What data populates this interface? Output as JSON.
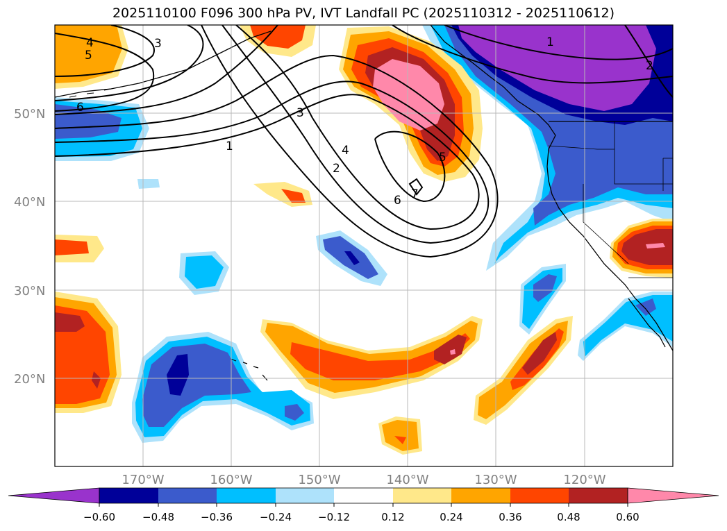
{
  "title": "2025110100 F096 300 hPa PV, IVT Landfall PC (2025110312 - 2025110612)",
  "lat_labels": [
    "50°N",
    "40°N",
    "30°N",
    "20°N"
  ],
  "lon_labels": [
    "170°W",
    "160°W",
    "150°W",
    "140°W",
    "130°W",
    "120°W"
  ],
  "colorbar": {
    "tick_labels": [
      "−0.60",
      "−0.48",
      "−0.36",
      "−0.24",
      "−0.12",
      "0.12",
      "0.24",
      "0.36",
      "0.48",
      "0.60"
    ],
    "colors": [
      "#9933cc",
      "#000099",
      "#3b5bcc",
      "#00bfff",
      "#aee2fb",
      "#ffffff",
      "#ffe88a",
      "#ffa500",
      "#ff4500",
      "#b22222",
      "#ff88aa"
    ]
  },
  "contour_labels": [
    "4",
    "5",
    "6",
    "3",
    "1",
    "3",
    "4",
    "2",
    "6",
    "7",
    "5",
    "1",
    "2"
  ],
  "colors": {
    "purple": "#9933cc",
    "navy": "#000099",
    "blue": "#3b5bcc",
    "cyan": "#00bfff",
    "lightblue": "#aee2fb",
    "yellow": "#ffe88a",
    "orange": "#ffa500",
    "redorange": "#ff4500",
    "firebrick": "#b22222",
    "pink": "#ff88aa"
  }
}
